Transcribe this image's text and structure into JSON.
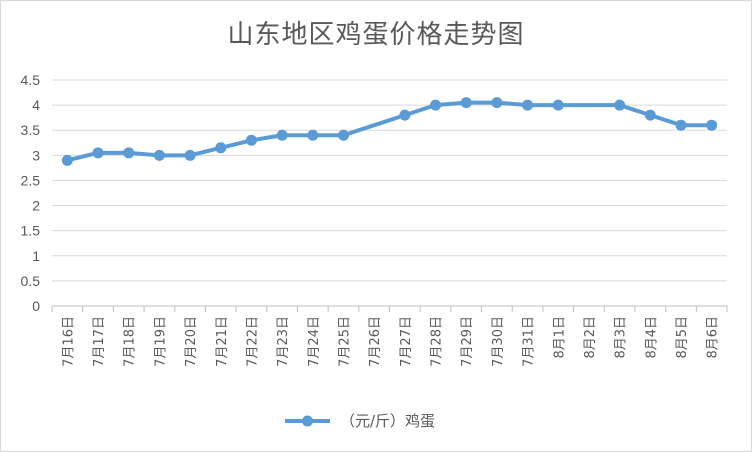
{
  "chart_data": {
    "type": "line",
    "title": "山东地区鸡蛋价格走势图",
    "xlabel": "",
    "ylabel": "",
    "ylim": [
      0,
      4.5
    ],
    "yticks": [
      "0",
      "0.5",
      "1",
      "1.5",
      "2",
      "2.5",
      "3",
      "3.5",
      "4",
      "4.5"
    ],
    "categories": [
      "7月16日",
      "7月17日",
      "7月18日",
      "7月19日",
      "7月20日",
      "7月21日",
      "7月22日",
      "7月23日",
      "7月24日",
      "7月25日",
      "7月26日",
      "7月27日",
      "7月28日",
      "7月29日",
      "7月30日",
      "7月31日",
      "8月1日",
      "8月2日",
      "8月3日",
      "8月4日",
      "8月5日",
      "8月6日"
    ],
    "series": [
      {
        "name": "（元/斤）鸡蛋",
        "color": "#5b9bd5",
        "values": [
          2.9,
          3.05,
          3.05,
          3.0,
          3.0,
          3.15,
          3.3,
          3.4,
          3.4,
          3.4,
          null,
          3.8,
          4.0,
          4.05,
          4.05,
          4.0,
          4.0,
          null,
          4.0,
          3.8,
          3.6,
          3.6
        ]
      }
    ],
    "grid": true,
    "legend": "bottom"
  }
}
